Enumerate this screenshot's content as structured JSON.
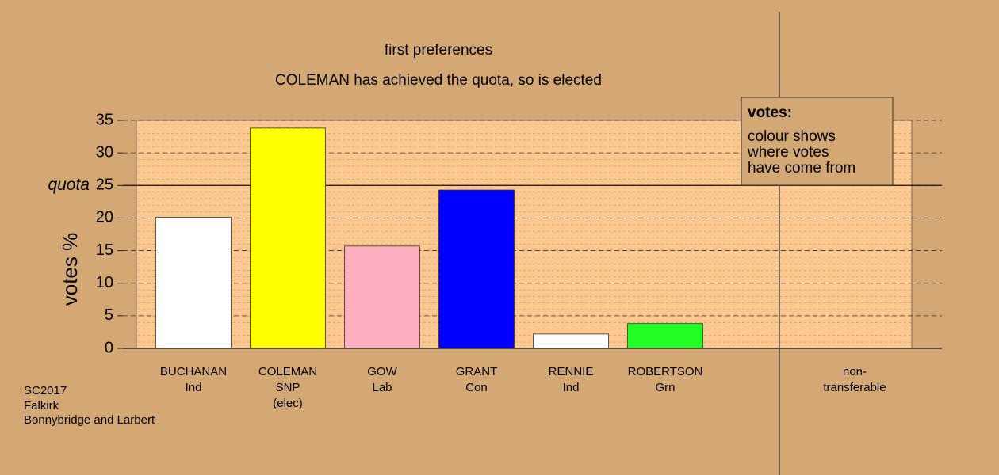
{
  "chart_data": {
    "type": "bar",
    "title": "first preferences",
    "subtitle": "COLEMAN has achieved the quota, so is elected",
    "y_label": "votes %",
    "categories": [
      [
        "BUCHANAN",
        "Ind"
      ],
      [
        "COLEMAN",
        "SNP",
        "(elec)"
      ],
      [
        "GOW",
        "Lab"
      ],
      [
        "GRANT",
        "Con"
      ],
      [
        "RENNIE",
        "Ind"
      ],
      [
        "ROBERTSON",
        "Grn"
      ],
      [
        "non-",
        "transferable"
      ]
    ],
    "values": [
      20.1,
      33.8,
      15.7,
      24.3,
      2.2,
      3.8,
      0
    ],
    "colors": [
      "#ffffff",
      "#ffff00",
      "#ffb0c0",
      "#0000ff",
      "#ffffff",
      "#22ff22",
      "#ffffff"
    ],
    "ylim": [
      0,
      35
    ],
    "yticks": [
      0,
      5,
      10,
      15,
      20,
      25,
      30,
      35
    ],
    "grid": true,
    "quota": {
      "value": 25,
      "label": "quota"
    },
    "legend": {
      "title": "votes:",
      "lines": [
        "colour shows",
        "where votes",
        "have come from"
      ]
    },
    "footer": [
      "SC2017",
      "Falkirk",
      "Bonnybridge and Larbert"
    ]
  }
}
